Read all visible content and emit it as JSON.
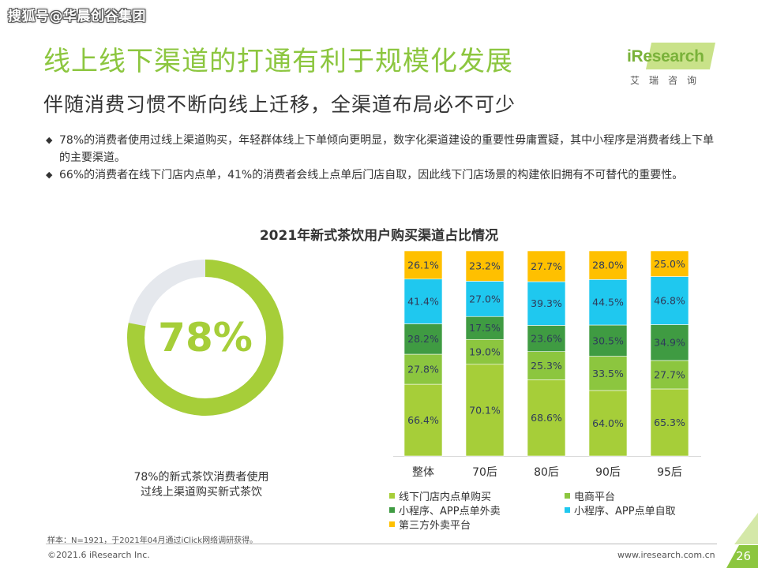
{
  "watermark": "搜狐号@华晨创谷集团",
  "header": {
    "title": "线上线下渠道的打通有利于规模化发展",
    "subtitle": "伴随消费习惯不断向线上迁移，全渠道布局必不可少"
  },
  "logo": {
    "name": "iResearch",
    "sub": "艾瑞咨询"
  },
  "bullets": [
    {
      "mark": "◆",
      "text": "78%的消费者使用过线上渠道购买，年轻群体线上下单倾向更明显，数字化渠道建设的重要性毋庸置疑，其中小程序是消费者线上下单的主要渠道。"
    },
    {
      "mark": "◆",
      "text": "66%的消费者在线下门店内点单，41%的消费者会线上点单后门店自取，因此线下门店场景的构建依旧拥有不可替代的重要性。"
    }
  ],
  "chart_data": [
    {
      "type": "pie",
      "value": 78,
      "center_label": "78%",
      "caption": [
        "78%的新式茶饮消费者使用",
        "过线上渠道购买新式茶饮"
      ],
      "colors": {
        "fill": "#a6ce39",
        "track": "#e5e8ed"
      }
    },
    {
      "type": "bar",
      "stacked": true,
      "title": "2021年新式茶饮用户购买渠道占比情况",
      "categories": [
        "整体",
        "70后",
        "80后",
        "90后",
        "95后"
      ],
      "series": [
        {
          "name": "线下门店内点单购买",
          "color": "#a6ce39",
          "values": [
            66.4,
            70.1,
            68.6,
            64.0,
            65.3
          ],
          "labels": [
            "66.4%",
            "70.1%",
            "68.6%",
            "64.0%",
            "65.3%"
          ]
        },
        {
          "name": "电商平台",
          "color": "#8cc63f",
          "values": [
            27.8,
            19.0,
            25.3,
            33.5,
            27.7
          ],
          "labels": [
            "27.8%",
            "19.0%",
            "25.3%",
            "33.5%",
            "27.7%"
          ]
        },
        {
          "name": "小程序、APP点单外卖",
          "color": "#3f9b42",
          "values": [
            28.2,
            17.5,
            23.6,
            30.5,
            34.9
          ],
          "labels": [
            "28.2%",
            "17.5%",
            "23.6%",
            "30.5%",
            "34.9%"
          ]
        },
        {
          "name": "小程序、APP点单自取",
          "color": "#1fc8ef",
          "values": [
            41.4,
            27.0,
            39.3,
            44.5,
            46.8
          ],
          "labels": [
            "41.4%",
            "27.0%",
            "39.3%",
            "44.5%",
            "46.8%"
          ]
        },
        {
          "name": "第三方外卖平台",
          "color": "#ffc000",
          "values": [
            26.1,
            23.2,
            27.7,
            28.0,
            25.0
          ],
          "labels": [
            "26.1%",
            "23.2%",
            "27.7%",
            "28.0%",
            "25.0%"
          ]
        }
      ],
      "legend_position": "bottom",
      "grid": false
    }
  ],
  "footer": {
    "source": "样本：N=1921，于2021年04月通过iClick网络调研获得。",
    "copyright": "©2021.6 iResearch Inc.",
    "website": "www.iresearch.com.cn",
    "page": "26"
  }
}
